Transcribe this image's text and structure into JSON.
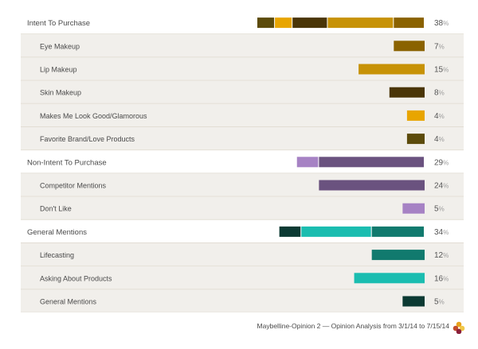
{
  "footer": {
    "caption": "Maybelline-Opinion 2 — Opinion Analysis from 3/1/14 to 7/15/14"
  },
  "colors": {
    "group_background": "#ffffff",
    "sub_background": "#f1efeb",
    "divider": "#e2ddd3",
    "label_text": "#4a4a4a",
    "value_text": "#555555",
    "percent_sign": "#9a9a9a",
    "logo": [
      "#e8a31c",
      "#c24d2c",
      "#f0c84a",
      "#8a1f3a"
    ]
  },
  "chart_data": {
    "type": "bar",
    "orientation": "horizontal",
    "unit": "%",
    "xlim": [
      0,
      40
    ],
    "grid": false,
    "legend": "none",
    "rows": [
      {
        "label": "Intent To Purchase",
        "level": "group",
        "value": 38,
        "segments": [
          {
            "value": 4,
            "color": "#5c4b0b"
          },
          {
            "value": 4,
            "color": "#e8a500"
          },
          {
            "value": 8,
            "color": "#4a3507"
          },
          {
            "value": 15,
            "color": "#c79207"
          },
          {
            "value": 7,
            "color": "#8a6200"
          }
        ]
      },
      {
        "label": "Eye Makeup",
        "level": "sub",
        "value": 7,
        "color": "#8a6200"
      },
      {
        "label": "Lip Makeup",
        "level": "sub",
        "value": 15,
        "color": "#c79207"
      },
      {
        "label": "Skin Makeup",
        "level": "sub",
        "value": 8,
        "color": "#4a3507"
      },
      {
        "label": "Makes Me Look Good/Glamorous",
        "level": "sub",
        "value": 4,
        "color": "#e8a500"
      },
      {
        "label": "Favorite Brand/Love Products",
        "level": "sub",
        "value": 4,
        "color": "#5c4b0b"
      },
      {
        "label": "Non-Intent To Purchase",
        "level": "group",
        "value": 29,
        "segments": [
          {
            "value": 5,
            "color": "#a682c4"
          },
          {
            "value": 24,
            "color": "#6a527f"
          }
        ]
      },
      {
        "label": "Competitor Mentions",
        "level": "sub",
        "value": 24,
        "color": "#6a527f"
      },
      {
        "label": "Don't Like",
        "level": "sub",
        "value": 5,
        "color": "#a682c4"
      },
      {
        "label": "General Mentions",
        "level": "group",
        "value": 34,
        "segments": [
          {
            "value": 5,
            "color": "#0c3a33"
          },
          {
            "value": 16,
            "color": "#1bbdb0"
          },
          {
            "value": 12,
            "color": "#117a6e"
          }
        ]
      },
      {
        "label": "Lifecasting",
        "level": "sub",
        "value": 12,
        "color": "#117a6e"
      },
      {
        "label": "Asking About Products",
        "level": "sub",
        "value": 16,
        "color": "#1bbdb0"
      },
      {
        "label": "General Mentions",
        "level": "sub",
        "value": 5,
        "color": "#0c3a33"
      }
    ]
  }
}
